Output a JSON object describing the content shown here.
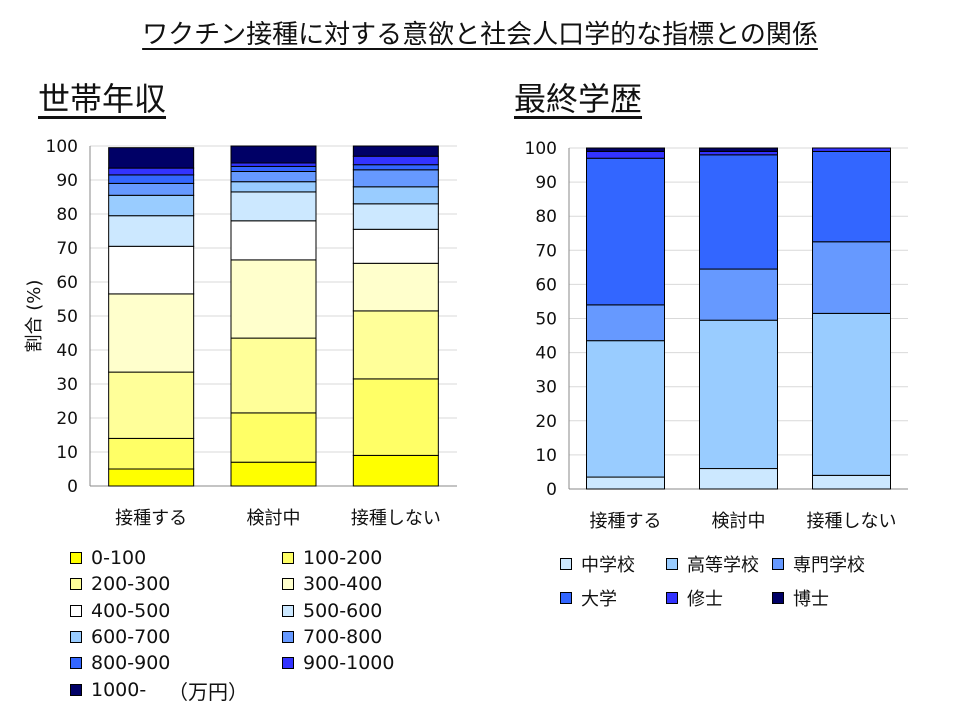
{
  "title": "ワクチン接種に対する意欲と社会人口学的な指標との関係",
  "unit_note": "（万円）",
  "chart_data": [
    {
      "type": "bar",
      "stacked": true,
      "title": "世帯年収",
      "ylabel": "割合 (%)",
      "ylim": [
        0,
        100
      ],
      "yticks": [
        0,
        10,
        20,
        30,
        40,
        50,
        60,
        70,
        80,
        90,
        100
      ],
      "grid": true,
      "categories": [
        "接種する",
        "検討中",
        "接種しない"
      ],
      "series": [
        {
          "name": "0-100",
          "color": "#ffff00",
          "values": [
            5,
            7,
            9
          ]
        },
        {
          "name": "100-200",
          "color": "#ffff66",
          "values": [
            9,
            14.5,
            22.5
          ]
        },
        {
          "name": "200-300",
          "color": "#ffff99",
          "values": [
            19.5,
            22,
            20
          ]
        },
        {
          "name": "300-400",
          "color": "#ffffcc",
          "values": [
            23,
            23,
            14
          ]
        },
        {
          "name": "400-500",
          "color": "#ffffff",
          "values": [
            14,
            11.5,
            10
          ]
        },
        {
          "name": "500-600",
          "color": "#cce8ff",
          "values": [
            9,
            8.5,
            7.5
          ]
        },
        {
          "name": "600-700",
          "color": "#99ccff",
          "values": [
            6,
            3,
            5
          ]
        },
        {
          "name": "700-800",
          "color": "#6699ff",
          "values": [
            3.5,
            3,
            5
          ]
        },
        {
          "name": "800-900",
          "color": "#3366ff",
          "values": [
            2.5,
            1.5,
            1.5
          ]
        },
        {
          "name": "900-1000",
          "color": "#3333ff",
          "values": [
            2,
            1,
            2.5
          ]
        },
        {
          "name": "1000-",
          "color": "#000066",
          "values": [
            6,
            5,
            3
          ]
        }
      ]
    },
    {
      "type": "bar",
      "stacked": true,
      "title": "最終学歴",
      "ylim": [
        0,
        100
      ],
      "yticks": [
        0,
        10,
        20,
        30,
        40,
        50,
        60,
        70,
        80,
        90,
        100
      ],
      "grid": true,
      "categories": [
        "接種する",
        "検討中",
        "接種しない"
      ],
      "series": [
        {
          "name": "中学校",
          "color": "#cce8ff",
          "values": [
            3.5,
            6,
            4
          ]
        },
        {
          "name": "高等学校",
          "color": "#99ccff",
          "values": [
            40,
            43.5,
            47.5
          ]
        },
        {
          "name": "専門学校",
          "color": "#6699ff",
          "values": [
            10.5,
            15,
            21
          ]
        },
        {
          "name": "大学",
          "color": "#3366ff",
          "values": [
            43,
            33.5,
            26.5
          ]
        },
        {
          "name": "修士",
          "color": "#3333ff",
          "values": [
            2,
            1,
            1
          ]
        },
        {
          "name": "博士",
          "color": "#000066",
          "values": [
            1,
            1,
            0
          ]
        }
      ]
    }
  ]
}
